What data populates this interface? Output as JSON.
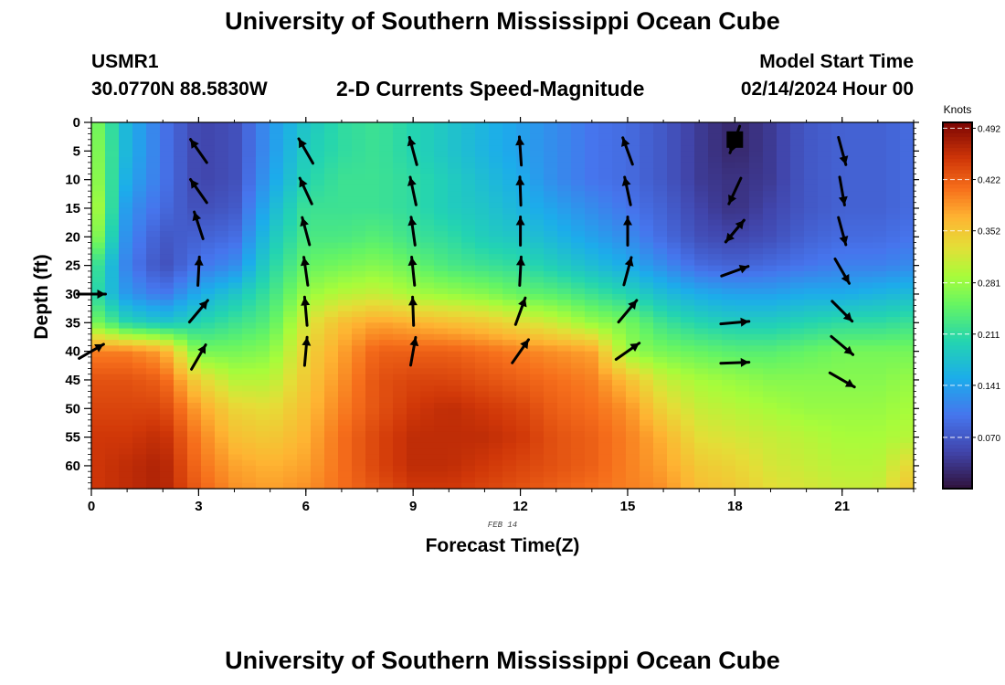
{
  "header": {
    "title": "University of Southern Mississippi Ocean Cube",
    "station": "USMR1",
    "coords": "30.0770N  88.5830W",
    "model_start_label": "Model Start Time",
    "model_start_value": "02/14/2024 Hour 00",
    "footer_title": "University of Southern Mississippi Ocean Cube"
  },
  "chart_data": {
    "type": "heatmap",
    "title": "University of Southern Mississippi Ocean Cube",
    "subtitle": "2-D Currents Speed-Magnitude",
    "xlabel": "Forecast Time(Z)",
    "ylabel": "Depth (ft)",
    "date_label": "FEB 14",
    "colorbar_label": "Knots",
    "xlim": [
      0,
      23
    ],
    "ylim": [
      0,
      64
    ],
    "x_ticks": [
      0,
      3,
      6,
      9,
      12,
      15,
      18,
      21
    ],
    "y_ticks": [
      0,
      5,
      10,
      15,
      20,
      25,
      30,
      35,
      40,
      45,
      50,
      55,
      60
    ],
    "colorbar_ticks": [
      0.07,
      0.141,
      0.211,
      0.281,
      0.352,
      0.422,
      0.492
    ],
    "colorbar_tick_labels": [
      "0.070",
      "0.141",
      "0.211",
      "0.281",
      "0.352",
      "0.422",
      "0.492"
    ],
    "colorbar_range": [
      0.0,
      0.5
    ],
    "heatmap_x": [
      0,
      1,
      2,
      3,
      4,
      5,
      6,
      7,
      8,
      9,
      10,
      11,
      12,
      13,
      14,
      15,
      16,
      17,
      18,
      19,
      20,
      21,
      22,
      23
    ],
    "heatmap_depth": [
      0,
      5,
      10,
      15,
      20,
      25,
      30,
      35,
      40,
      45,
      50,
      55,
      60,
      64
    ],
    "heatmap_values": [
      [
        0.28,
        0.16,
        0.1,
        0.05,
        0.06,
        0.13,
        0.18,
        0.21,
        0.22,
        0.2,
        0.18,
        0.16,
        0.14,
        0.12,
        0.1,
        0.09,
        0.07,
        0.04,
        0.02,
        0.04,
        0.07,
        0.08,
        0.08,
        0.09
      ],
      [
        0.29,
        0.16,
        0.1,
        0.05,
        0.06,
        0.13,
        0.19,
        0.21,
        0.22,
        0.2,
        0.18,
        0.16,
        0.14,
        0.12,
        0.1,
        0.09,
        0.07,
        0.04,
        0.02,
        0.04,
        0.07,
        0.08,
        0.08,
        0.09
      ],
      [
        0.3,
        0.15,
        0.1,
        0.05,
        0.06,
        0.14,
        0.2,
        0.22,
        0.22,
        0.21,
        0.19,
        0.17,
        0.15,
        0.12,
        0.1,
        0.09,
        0.07,
        0.04,
        0.03,
        0.04,
        0.07,
        0.08,
        0.08,
        0.09
      ],
      [
        0.32,
        0.13,
        0.09,
        0.06,
        0.07,
        0.16,
        0.22,
        0.22,
        0.22,
        0.21,
        0.19,
        0.18,
        0.16,
        0.14,
        0.12,
        0.1,
        0.08,
        0.05,
        0.03,
        0.05,
        0.07,
        0.08,
        0.08,
        0.09
      ],
      [
        0.3,
        0.12,
        0.07,
        0.08,
        0.09,
        0.18,
        0.23,
        0.23,
        0.24,
        0.22,
        0.21,
        0.19,
        0.18,
        0.16,
        0.14,
        0.12,
        0.09,
        0.06,
        0.05,
        0.06,
        0.08,
        0.09,
        0.09,
        0.1
      ],
      [
        0.24,
        0.11,
        0.06,
        0.1,
        0.12,
        0.2,
        0.25,
        0.26,
        0.27,
        0.25,
        0.23,
        0.22,
        0.21,
        0.19,
        0.17,
        0.15,
        0.12,
        0.09,
        0.08,
        0.09,
        0.1,
        0.11,
        0.11,
        0.12
      ],
      [
        0.22,
        0.13,
        0.1,
        0.15,
        0.18,
        0.22,
        0.28,
        0.3,
        0.31,
        0.29,
        0.28,
        0.27,
        0.25,
        0.24,
        0.22,
        0.2,
        0.17,
        0.15,
        0.14,
        0.14,
        0.15,
        0.15,
        0.16,
        0.17
      ],
      [
        0.27,
        0.2,
        0.18,
        0.2,
        0.22,
        0.24,
        0.32,
        0.36,
        0.38,
        0.37,
        0.36,
        0.35,
        0.33,
        0.31,
        0.28,
        0.26,
        0.22,
        0.2,
        0.19,
        0.19,
        0.2,
        0.21,
        0.21,
        0.22
      ],
      [
        0.4,
        0.4,
        0.38,
        0.26,
        0.26,
        0.27,
        0.34,
        0.38,
        0.42,
        0.42,
        0.42,
        0.41,
        0.4,
        0.39,
        0.38,
        0.28,
        0.26,
        0.25,
        0.24,
        0.24,
        0.25,
        0.26,
        0.26,
        0.26
      ],
      [
        0.43,
        0.43,
        0.42,
        0.34,
        0.3,
        0.3,
        0.35,
        0.39,
        0.43,
        0.44,
        0.44,
        0.43,
        0.42,
        0.41,
        0.4,
        0.36,
        0.31,
        0.29,
        0.28,
        0.27,
        0.27,
        0.27,
        0.27,
        0.28
      ],
      [
        0.44,
        0.44,
        0.44,
        0.38,
        0.34,
        0.33,
        0.36,
        0.4,
        0.43,
        0.45,
        0.46,
        0.45,
        0.44,
        0.42,
        0.41,
        0.39,
        0.34,
        0.31,
        0.3,
        0.29,
        0.28,
        0.28,
        0.28,
        0.29
      ],
      [
        0.45,
        0.45,
        0.46,
        0.4,
        0.36,
        0.35,
        0.37,
        0.41,
        0.44,
        0.46,
        0.46,
        0.46,
        0.45,
        0.43,
        0.42,
        0.4,
        0.37,
        0.33,
        0.32,
        0.31,
        0.3,
        0.29,
        0.29,
        0.3
      ],
      [
        0.45,
        0.46,
        0.47,
        0.41,
        0.38,
        0.37,
        0.38,
        0.41,
        0.44,
        0.46,
        0.46,
        0.45,
        0.44,
        0.43,
        0.42,
        0.4,
        0.38,
        0.35,
        0.34,
        0.32,
        0.31,
        0.3,
        0.3,
        0.34
      ],
      [
        0.45,
        0.46,
        0.47,
        0.42,
        0.39,
        0.38,
        0.39,
        0.41,
        0.43,
        0.45,
        0.45,
        0.44,
        0.43,
        0.42,
        0.41,
        0.4,
        0.39,
        0.36,
        0.35,
        0.33,
        0.32,
        0.31,
        0.31,
        0.36
      ]
    ],
    "vectors": [
      {
        "x": 0,
        "depth": 30,
        "angle": 90
      },
      {
        "x": 0,
        "depth": 40,
        "angle": 60
      },
      {
        "x": 3,
        "depth": 5,
        "angle": -35
      },
      {
        "x": 3,
        "depth": 12,
        "angle": -35
      },
      {
        "x": 3,
        "depth": 18,
        "angle": -18
      },
      {
        "x": 3,
        "depth": 26,
        "angle": 3
      },
      {
        "x": 3,
        "depth": 33,
        "angle": 40
      },
      {
        "x": 3,
        "depth": 41,
        "angle": 30
      },
      {
        "x": 6,
        "depth": 5,
        "angle": -30
      },
      {
        "x": 6,
        "depth": 12,
        "angle": -25
      },
      {
        "x": 6,
        "depth": 19,
        "angle": -15
      },
      {
        "x": 6,
        "depth": 26,
        "angle": -8
      },
      {
        "x": 6,
        "depth": 33,
        "angle": -5
      },
      {
        "x": 6,
        "depth": 40,
        "angle": 5
      },
      {
        "x": 9,
        "depth": 5,
        "angle": -15
      },
      {
        "x": 9,
        "depth": 12,
        "angle": -12
      },
      {
        "x": 9,
        "depth": 19,
        "angle": -8
      },
      {
        "x": 9,
        "depth": 26,
        "angle": -6
      },
      {
        "x": 9,
        "depth": 33,
        "angle": -2
      },
      {
        "x": 9,
        "depth": 40,
        "angle": 10
      },
      {
        "x": 12,
        "depth": 5,
        "angle": -4
      },
      {
        "x": 12,
        "depth": 12,
        "angle": -2
      },
      {
        "x": 12,
        "depth": 19,
        "angle": 0
      },
      {
        "x": 12,
        "depth": 26,
        "angle": 3
      },
      {
        "x": 12,
        "depth": 33,
        "angle": 20
      },
      {
        "x": 12,
        "depth": 40,
        "angle": 35
      },
      {
        "x": 15,
        "depth": 5,
        "angle": -20
      },
      {
        "x": 15,
        "depth": 12,
        "angle": -12
      },
      {
        "x": 15,
        "depth": 19,
        "angle": 0
      },
      {
        "x": 15,
        "depth": 26,
        "angle": 15
      },
      {
        "x": 15,
        "depth": 33,
        "angle": 40
      },
      {
        "x": 15,
        "depth": 40,
        "angle": 55
      },
      {
        "x": 18,
        "depth": 3,
        "angle": 200,
        "marker": "square"
      },
      {
        "x": 18,
        "depth": 12,
        "angle": 205
      },
      {
        "x": 18,
        "depth": 19,
        "angle": 220
      },
      {
        "x": 18,
        "depth": 19,
        "angle": 40
      },
      {
        "x": 18,
        "depth": 26,
        "angle": 70
      },
      {
        "x": 18,
        "depth": 35,
        "angle": 85
      },
      {
        "x": 18,
        "depth": 42,
        "angle": 88
      },
      {
        "x": 21,
        "depth": 5,
        "angle": 165
      },
      {
        "x": 21,
        "depth": 12,
        "angle": 170
      },
      {
        "x": 21,
        "depth": 19,
        "angle": 165
      },
      {
        "x": 21,
        "depth": 26,
        "angle": 150
      },
      {
        "x": 21,
        "depth": 33,
        "angle": 135
      },
      {
        "x": 21,
        "depth": 39,
        "angle": 130
      },
      {
        "x": 21,
        "depth": 45,
        "angle": 120
      }
    ]
  }
}
